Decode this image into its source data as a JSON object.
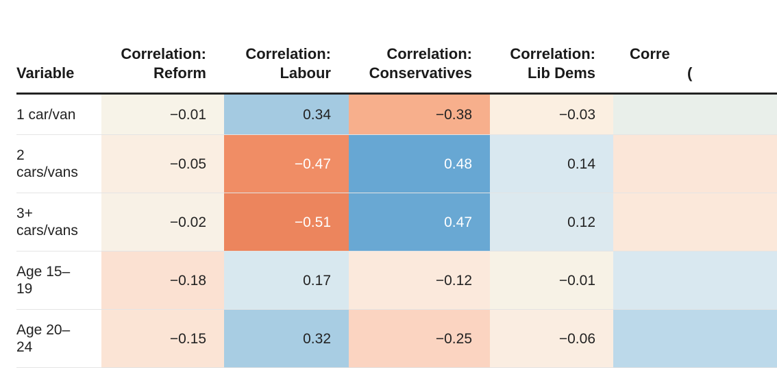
{
  "chart_data": {
    "type": "table",
    "title": "",
    "columns": [
      {
        "line1": "Variable",
        "line2": ""
      },
      {
        "line1": "Correlation:",
        "line2": "Reform"
      },
      {
        "line1": "Correlation:",
        "line2": "Labour"
      },
      {
        "line1": "Correlation:",
        "line2": "Conservatives"
      },
      {
        "line1": "Correlation:",
        "line2": "Lib Dems"
      },
      {
        "line1": "Corre",
        "line2": "("
      }
    ],
    "rows": [
      {
        "label_lines": [
          "1 car/van"
        ],
        "values": [
          "−0.01",
          "0.34",
          "−0.38",
          "−0.03"
        ],
        "colors": [
          "#f7f3e8",
          "#a4cae1",
          "#f7af8c",
          "#fbefe1",
          "#e9efea"
        ]
      },
      {
        "label_lines": [
          "2",
          "cars/vans"
        ],
        "values": [
          "−0.05",
          "−0.47",
          "0.48",
          "0.14"
        ],
        "colors": [
          "#faeee2",
          "#f08d65",
          "#67a7d3",
          "#d9e8f0",
          "#fbe6d8"
        ]
      },
      {
        "label_lines": [
          "3+",
          "cars/vans"
        ],
        "values": [
          "−0.02",
          "−0.51",
          "0.47",
          "0.12"
        ],
        "colors": [
          "#f8f1e6",
          "#ec855d",
          "#69a8d3",
          "#dce9ef",
          "#fbe8da"
        ]
      },
      {
        "label_lines": [
          "Age 15–",
          "19"
        ],
        "values": [
          "−0.18",
          "0.17",
          "−0.12",
          "−0.01"
        ],
        "colors": [
          "#fbe1d2",
          "#d8e8ef",
          "#fbe9dc",
          "#f7f2e6",
          "#d9e8f0"
        ]
      },
      {
        "label_lines": [
          "Age 20–",
          "24"
        ],
        "values": [
          "−0.15",
          "0.32",
          "−0.25",
          "−0.06"
        ],
        "colors": [
          "#fbe4d5",
          "#a8cde3",
          "#fbd4c1",
          "#faede1",
          "#bcd9ea"
        ]
      }
    ],
    "color_scale": {
      "negative": "#ec855d",
      "neutral": "#f7f3e8",
      "positive": "#67a7d3"
    }
  }
}
